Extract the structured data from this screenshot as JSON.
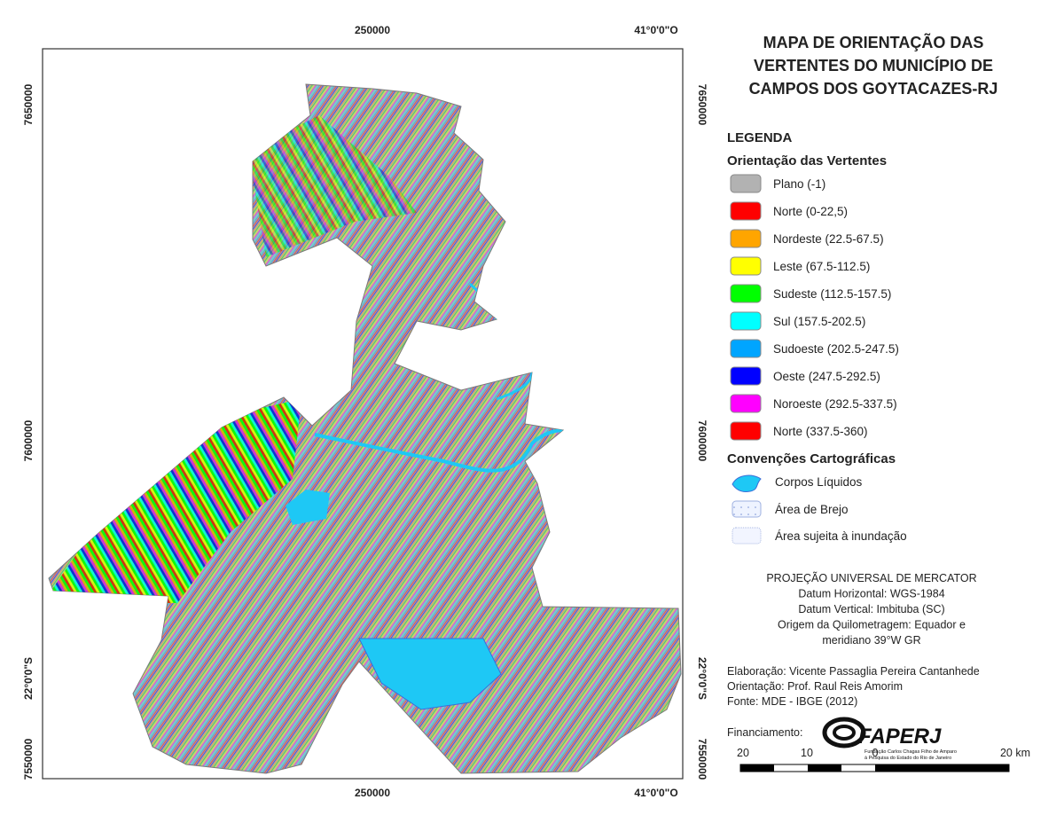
{
  "map": {
    "frame_labels": {
      "top": [
        "250000",
        "41°0'0\"O"
      ],
      "bottom": [
        "250000",
        "41°0'0\"O"
      ],
      "left": [
        "7650000",
        "7600000",
        "22°0'0\"S",
        "7550000"
      ],
      "right": [
        "7650000",
        "7600000",
        "22°0'0\"S",
        "7550000"
      ]
    }
  },
  "legend": {
    "title_lines": [
      "MAPA DE ORIENTAÇÃO DAS",
      "VERTENTES DO MUNICÍPIO DE",
      "CAMPOS DOS GOYTACAZES-RJ"
    ],
    "heading": "LEGENDA",
    "subheading": "Orientação das Vertentes",
    "classes": [
      {
        "label": "Plano (-1)",
        "color": "#b2b2b2"
      },
      {
        "label": "Norte (0-22,5)",
        "color": "#ff0000"
      },
      {
        "label": "Nordeste (22.5-67.5)",
        "color": "#ffa500"
      },
      {
        "label": "Leste (67.5-112.5)",
        "color": "#ffff00"
      },
      {
        "label": "Sudeste (112.5-157.5)",
        "color": "#00ff00"
      },
      {
        "label": "Sul (157.5-202.5)",
        "color": "#00ffff"
      },
      {
        "label": "Sudoeste (202.5-247.5)",
        "color": "#00a5ff"
      },
      {
        "label": "Oeste (247.5-292.5)",
        "color": "#0000ff"
      },
      {
        "label": "Noroeste (292.5-337.5)",
        "color": "#ff00ff"
      },
      {
        "label": "Norte (337.5-360)",
        "color": "#ff0000"
      }
    ],
    "conventions_title": "Convenções Cartográficas",
    "conventions": [
      "Corpos Líquidos",
      "Área de Brejo",
      "Área sujeita à inundação"
    ]
  },
  "projection": [
    "PROJEÇÃO UNIVERSAL DE MERCATOR",
    "Datum Horizontal: WGS-1984",
    "Datum Vertical: Imbituba (SC)",
    "Origem da Quilometragem: Equador e",
    "meridiano 39°W GR"
  ],
  "credits": [
    "Elaboração: Vicente Passaglia Pereira Cantanhede",
    "Orientação: Prof. Raul Reis Amorim",
    "Fonte: MDE - IBGE (2012)"
  ],
  "funding": {
    "label": "Financiamento:",
    "logo": "FAPERJ",
    "logo_subtitle": [
      "Fundação Carlos Chagas Filho de Amparo",
      "à Pesquisa do Estado do Rio de Janeiro"
    ]
  },
  "scale_bar": {
    "labels": [
      "20",
      "10",
      "0",
      "20 km"
    ]
  }
}
